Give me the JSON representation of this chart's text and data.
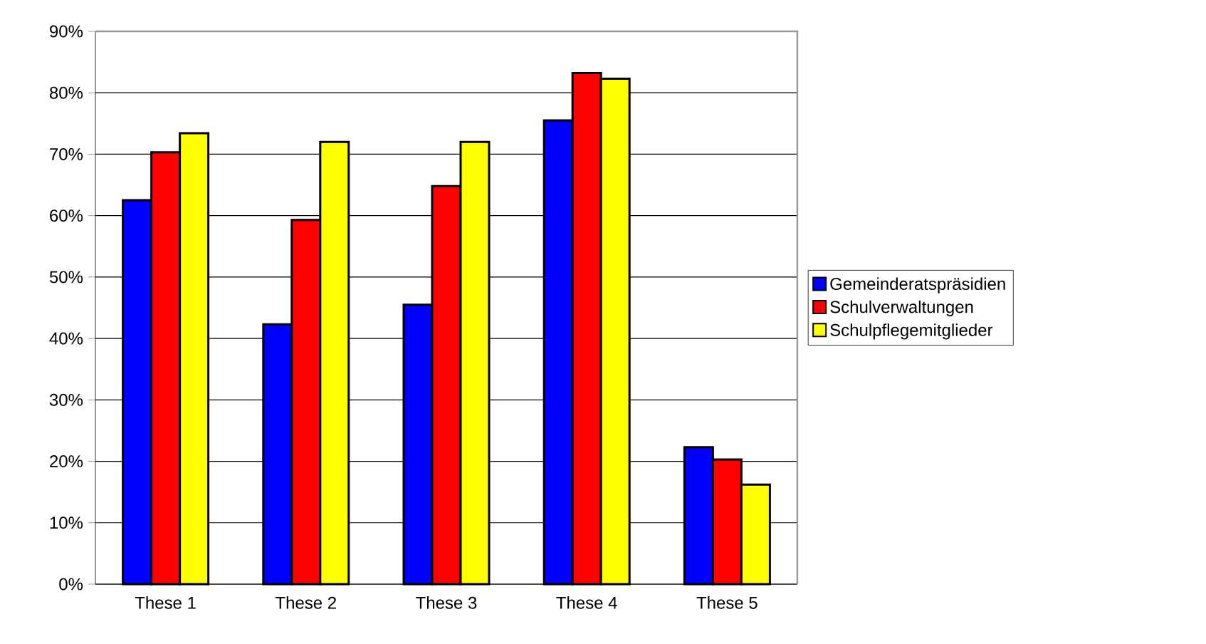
{
  "chart_data": {
    "type": "bar",
    "categories": [
      "These 1",
      "These 2",
      "These 3",
      "These 4",
      "These 5"
    ],
    "series": [
      {
        "name": "Gemeinderatspräsidien",
        "color": "#0000ff",
        "values": [
          62.5,
          42.3,
          45.5,
          75.5,
          22.3
        ]
      },
      {
        "name": "Schulverwaltungen",
        "color": "#ff0000",
        "values": [
          70.3,
          59.3,
          64.8,
          83.2,
          20.3
        ]
      },
      {
        "name": "Schulpflegemitglieder",
        "color": "#ffff00",
        "values": [
          73.4,
          72.0,
          72.0,
          82.3,
          16.2
        ]
      }
    ],
    "ylim": [
      0,
      90
    ],
    "yticks": [
      {
        "value": 0,
        "label": "0%"
      },
      {
        "value": 10,
        "label": "10%"
      },
      {
        "value": 20,
        "label": "20%"
      },
      {
        "value": 30,
        "label": "30%"
      },
      {
        "value": 40,
        "label": "40%"
      },
      {
        "value": 50,
        "label": "50%"
      },
      {
        "value": 60,
        "label": "60%"
      },
      {
        "value": 70,
        "label": "70%"
      },
      {
        "value": 80,
        "label": "80%"
      },
      {
        "value": 90,
        "label": "90%"
      }
    ],
    "grid": "y",
    "legend": "right"
  }
}
